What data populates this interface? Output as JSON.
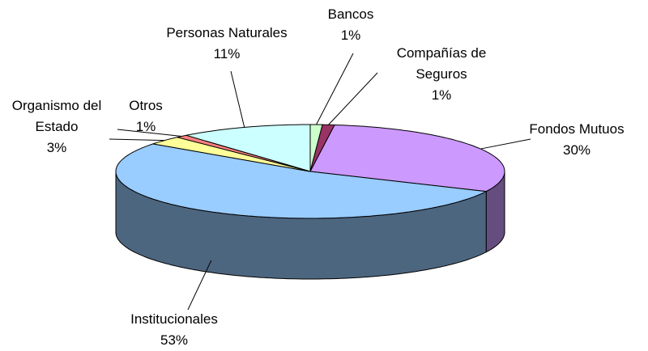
{
  "chart_data": {
    "type": "pie",
    "categories": [
      "Bancos",
      "Compañías de Seguros",
      "Fondos Mutuos",
      "Institucionales",
      "Organismo del Estado",
      "Otros",
      "Personas Naturales"
    ],
    "values": [
      1,
      1,
      30,
      53,
      3,
      1,
      11
    ],
    "value_labels": [
      "1%",
      "1%",
      "30%",
      "53%",
      "3%",
      "1%",
      "11%"
    ],
    "colors": [
      "#ccffcc",
      "#993366",
      "#cc99ff",
      "#99ccff",
      "#ffff99",
      "#ff8080",
      "#ccffff"
    ]
  }
}
